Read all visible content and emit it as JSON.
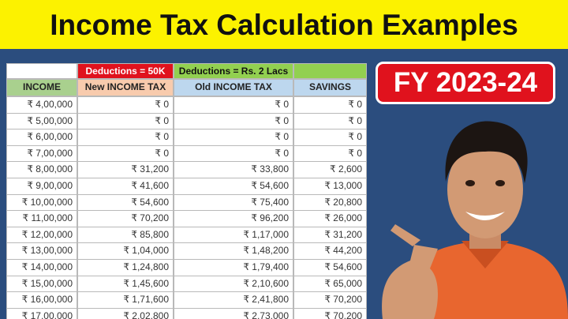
{
  "header": {
    "title": "Income Tax Calculation Examples"
  },
  "badge": "FY 2023-24",
  "table": {
    "notes": [
      "Deductions = 50K",
      "Deductions = Rs. 2 Lacs"
    ],
    "columns": [
      "INCOME",
      "New INCOME TAX",
      "Old INCOME TAX",
      "SAVINGS"
    ],
    "rows": [
      [
        "₹ 4,00,000",
        "₹ 0",
        "₹ 0",
        "₹ 0"
      ],
      [
        "₹ 5,00,000",
        "₹ 0",
        "₹ 0",
        "₹ 0"
      ],
      [
        "₹ 6,00,000",
        "₹ 0",
        "₹ 0",
        "₹ 0"
      ],
      [
        "₹ 7,00,000",
        "₹ 0",
        "₹ 0",
        "₹ 0"
      ],
      [
        "₹ 8,00,000",
        "₹ 31,200",
        "₹ 33,800",
        "₹ 2,600"
      ],
      [
        "₹ 9,00,000",
        "₹ 41,600",
        "₹ 54,600",
        "₹ 13,000"
      ],
      [
        "₹ 10,00,000",
        "₹ 54,600",
        "₹ 75,400",
        "₹ 20,800"
      ],
      [
        "₹ 11,00,000",
        "₹ 70,200",
        "₹ 96,200",
        "₹ 26,000"
      ],
      [
        "₹ 12,00,000",
        "₹ 85,800",
        "₹ 1,17,000",
        "₹ 31,200"
      ],
      [
        "₹ 13,00,000",
        "₹ 1,04,000",
        "₹ 1,48,200",
        "₹ 44,200"
      ],
      [
        "₹ 14,00,000",
        "₹ 1,24,800",
        "₹ 1,79,400",
        "₹ 54,600"
      ],
      [
        "₹ 15,00,000",
        "₹ 1,45,600",
        "₹ 2,10,600",
        "₹ 65,000"
      ],
      [
        "₹ 16,00,000",
        "₹ 1,71,600",
        "₹ 2,41,800",
        "₹ 70,200"
      ],
      [
        "₹ 17,00,000",
        "₹ 2,02,800",
        "₹ 2,73,000",
        "₹ 70,200"
      ]
    ]
  }
}
